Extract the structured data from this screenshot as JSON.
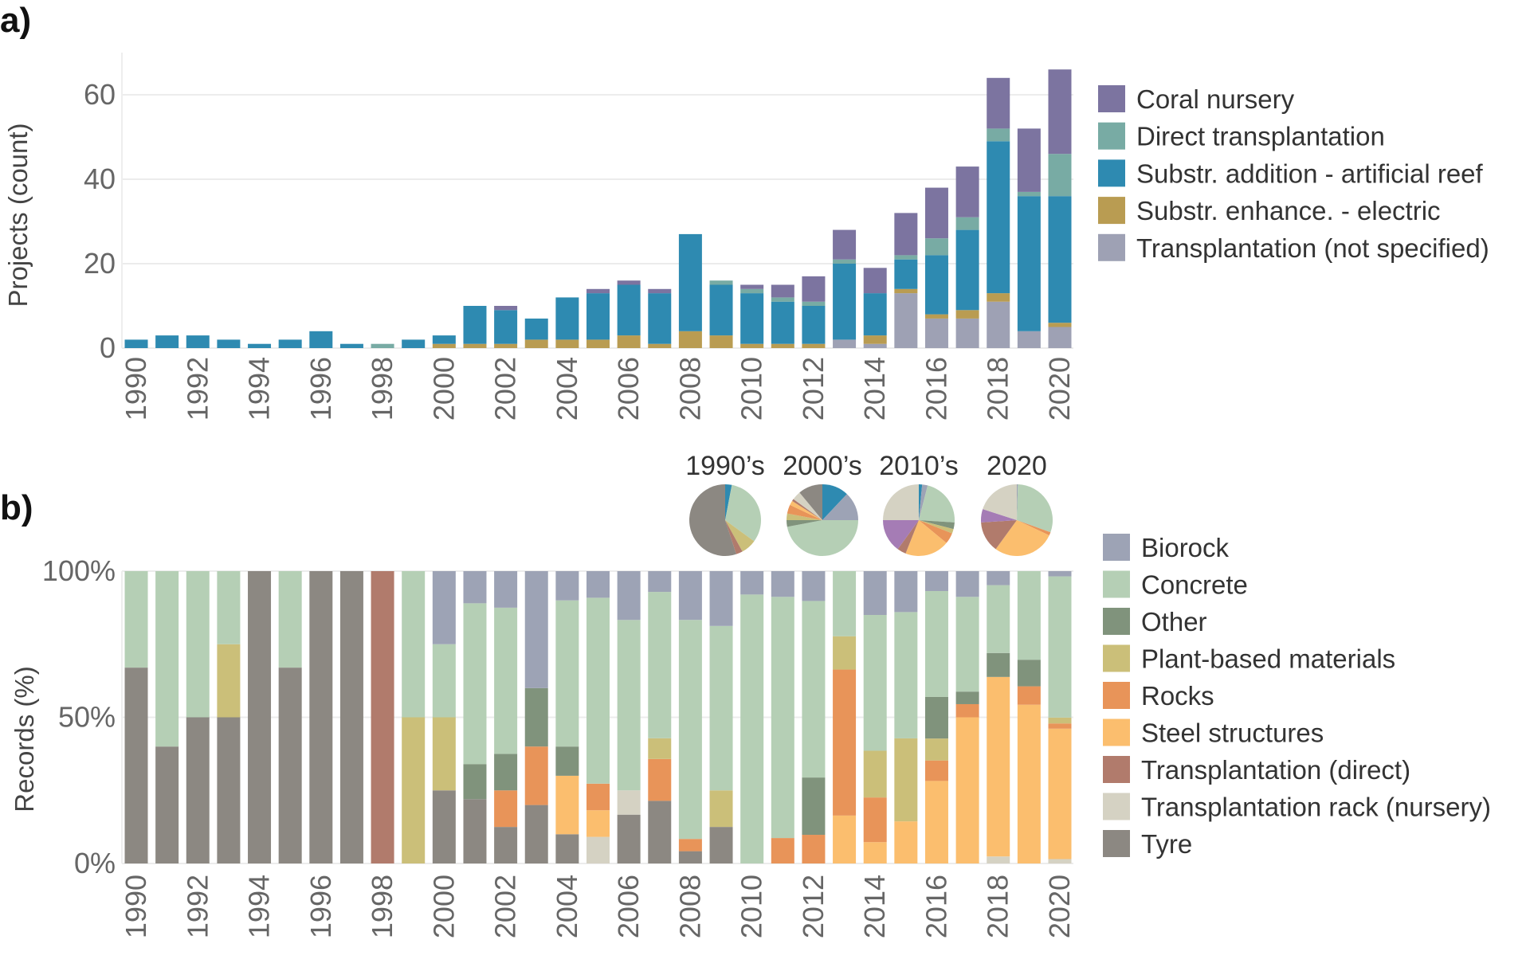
{
  "chart_data": [
    {
      "panel_label": "a)",
      "type": "bar",
      "stacked": true,
      "ylabel": "Projects (count)",
      "xlabel": "",
      "ylim": [
        0,
        70
      ],
      "y_ticks": [
        0,
        20,
        40,
        60
      ],
      "y_tick_labels": [
        "0",
        "20",
        "40",
        "60"
      ],
      "categories": [
        1990,
        1991,
        1992,
        1993,
        1994,
        1995,
        1996,
        1997,
        1998,
        1999,
        2000,
        2001,
        2002,
        2003,
        2004,
        2005,
        2006,
        2007,
        2008,
        2009,
        2010,
        2011,
        2012,
        2013,
        2014,
        2015,
        2016,
        2017,
        2018,
        2019,
        2020
      ],
      "x_tick_labels": [
        "1990",
        "1992",
        "1994",
        "1996",
        "1998",
        "2000",
        "2002",
        "2004",
        "2006",
        "2008",
        "2010",
        "2012",
        "2014",
        "2016",
        "2018",
        "2020"
      ],
      "grid": true,
      "legend_position": "right",
      "series": [
        {
          "name": "Transplantation (not specified)",
          "color": "#9ea1b4",
          "values": [
            0,
            0,
            0,
            0,
            0,
            0,
            0,
            0,
            0,
            0,
            0,
            0,
            0,
            0,
            0,
            0,
            0,
            0,
            0,
            0,
            0,
            0,
            0,
            2,
            1,
            13,
            7,
            7,
            11,
            4,
            5
          ]
        },
        {
          "name": "Substr. enhance. - electric",
          "color": "#b99c52",
          "values": [
            0,
            0,
            0,
            0,
            0,
            0,
            0,
            0,
            0,
            0,
            1,
            1,
            1,
            2,
            2,
            2,
            3,
            1,
            4,
            3,
            1,
            1,
            1,
            0,
            2,
            1,
            1,
            2,
            2,
            0,
            1
          ]
        },
        {
          "name": "Substr. addition - artificial reef",
          "color": "#2e8ab1",
          "values": [
            2,
            3,
            3,
            2,
            1,
            2,
            4,
            1,
            0,
            2,
            2,
            9,
            8,
            5,
            10,
            11,
            12,
            12,
            23,
            12,
            12,
            10,
            9,
            18,
            10,
            7,
            14,
            19,
            36,
            32,
            30
          ]
        },
        {
          "name": "Direct transplantation",
          "color": "#78aba4",
          "values": [
            0,
            0,
            0,
            0,
            0,
            0,
            0,
            0,
            1,
            0,
            0,
            0,
            0,
            0,
            0,
            0,
            0,
            0,
            0,
            1,
            1,
            1,
            1,
            1,
            0,
            1,
            4,
            3,
            3,
            1,
            10
          ]
        },
        {
          "name": "Coral nursery",
          "color": "#7c74a0",
          "values": [
            0,
            0,
            0,
            0,
            0,
            0,
            0,
            0,
            0,
            0,
            0,
            0,
            1,
            0,
            0,
            1,
            1,
            1,
            0,
            0,
            1,
            3,
            6,
            7,
            6,
            10,
            12,
            12,
            12,
            15,
            20
          ]
        }
      ],
      "legend_order": [
        "Coral nursery",
        "Direct transplantation",
        "Substr. addition - artificial reef",
        "Substr. enhance. - electric",
        "Transplantation (not specified)"
      ]
    },
    {
      "panel_label": "b)",
      "type": "bar",
      "stacked": true,
      "percent": true,
      "ylabel": "Records (%)",
      "xlabel": "",
      "ylim": [
        0,
        100
      ],
      "y_ticks": [
        0,
        50,
        100
      ],
      "y_tick_labels": [
        "0%",
        "50%",
        "100%"
      ],
      "categories": [
        1990,
        1991,
        1992,
        1993,
        1994,
        1995,
        1996,
        1997,
        1998,
        1999,
        2000,
        2001,
        2002,
        2003,
        2004,
        2005,
        2006,
        2007,
        2008,
        2009,
        2010,
        2011,
        2012,
        2013,
        2014,
        2015,
        2016,
        2017,
        2018,
        2019,
        2020
      ],
      "x_tick_labels": [
        "1990",
        "1992",
        "1994",
        "1996",
        "1998",
        "2000",
        "2002",
        "2004",
        "2006",
        "2008",
        "2010",
        "2012",
        "2014",
        "2016",
        "2018",
        "2020"
      ],
      "grid": true,
      "legend_position": "right",
      "series": [
        {
          "name": "Tyre",
          "color": "#8c8882",
          "values": [
            67,
            40,
            50,
            50,
            100,
            67,
            100,
            100,
            0,
            0,
            25,
            22,
            12.5,
            20,
            10,
            0,
            16.7,
            21.4,
            4.2,
            12.5,
            0,
            0,
            0,
            0,
            0,
            0,
            0,
            0,
            0,
            0,
            0
          ]
        },
        {
          "name": "Transplantation rack (nursery)",
          "color": "#d5d2c3",
          "values": [
            0,
            0,
            0,
            0,
            0,
            0,
            0,
            0,
            0,
            0,
            0,
            0,
            0,
            0,
            0,
            9.1,
            8.3,
            0,
            0,
            0,
            0,
            0,
            0,
            0,
            0,
            0,
            0,
            0,
            2.4,
            0,
            1.5
          ]
        },
        {
          "name": "Transplantation (direct)",
          "color": "#b17b6c",
          "values": [
            0,
            0,
            0,
            0,
            0,
            0,
            0,
            0,
            100,
            0,
            0,
            0,
            0,
            0,
            0,
            0,
            0,
            0,
            0,
            0,
            0,
            0,
            0,
            0,
            0,
            0,
            0,
            0,
            0,
            0,
            0
          ]
        },
        {
          "name": "Steel structures",
          "color": "#fbbe6e",
          "values": [
            0,
            0,
            0,
            0,
            0,
            0,
            0,
            0,
            0,
            0,
            0,
            0,
            0,
            0,
            20,
            9.1,
            0,
            0,
            0,
            0,
            0,
            0,
            0,
            16.4,
            7.3,
            14.4,
            28.2,
            50,
            61.4,
            54.3,
            44.6
          ]
        },
        {
          "name": "Rocks",
          "color": "#e89459",
          "values": [
            0,
            0,
            0,
            0,
            0,
            0,
            0,
            0,
            0,
            0,
            0,
            0,
            12.5,
            20,
            0,
            9.1,
            0,
            14.3,
            4.2,
            0,
            0,
            8.7,
            9.8,
            50,
            15.3,
            0,
            7,
            4.5,
            0,
            6.3,
            1.8
          ]
        },
        {
          "name": "Plant-based materials",
          "color": "#cbbf79",
          "values": [
            0,
            0,
            0,
            25,
            0,
            0,
            0,
            0,
            0,
            50,
            25,
            0,
            0,
            0,
            0,
            0,
            0,
            7.1,
            0,
            12.5,
            0,
            0,
            0,
            11.4,
            16,
            28.4,
            7.5,
            0,
            0,
            0,
            2
          ]
        },
        {
          "name": "Other",
          "color": "#80937c",
          "values": [
            0,
            0,
            0,
            0,
            0,
            0,
            0,
            0,
            0,
            0,
            0,
            12,
            12.5,
            20,
            10,
            0,
            0,
            0,
            0,
            0,
            0,
            0,
            19.6,
            0,
            0,
            0,
            14.2,
            4.3,
            8.2,
            9.1,
            0
          ]
        },
        {
          "name": "Concrete",
          "color": "#b5cfb5",
          "values": [
            33,
            60,
            50,
            25,
            0,
            33,
            0,
            0,
            0,
            50,
            25,
            55,
            50,
            0,
            50,
            63.6,
            58.3,
            50,
            75,
            56.25,
            92,
            82.5,
            60.4,
            22.3,
            46.5,
            43.2,
            36.2,
            32.4,
            23.2,
            30.3,
            48.3
          ]
        },
        {
          "name": "Biorock",
          "color": "#9da3b5",
          "values": [
            0,
            0,
            0,
            0,
            0,
            0,
            0,
            0,
            0,
            0,
            25,
            11,
            12.5,
            40,
            10,
            9.1,
            16.7,
            7.1,
            16.7,
            18.75,
            8,
            8.8,
            10.2,
            0,
            15,
            14,
            6.8,
            8.8,
            4.8,
            0,
            1.8
          ]
        }
      ],
      "legend_order": [
        "Biorock",
        "Concrete",
        "Other",
        "Plant-based materials",
        "Rocks",
        "Steel structures",
        "Transplantation (direct)",
        "Transplantation rack (nursery)",
        "Tyre"
      ]
    },
    {
      "type": "pie",
      "pies": [
        {
          "title": "1990’s",
          "slices": [
            {
              "key": "blue",
              "color": "#2e8ab1",
              "value": 3
            },
            {
              "key": "Concrete",
              "color": "#b5cfb5",
              "value": 32
            },
            {
              "key": "Plant-based materials",
              "color": "#cbbf79",
              "value": 7
            },
            {
              "key": "Transplantation (direct)",
              "color": "#b17b6c",
              "value": 3
            },
            {
              "key": "Tyre",
              "color": "#8c8882",
              "value": 55
            }
          ]
        },
        {
          "title": "2000’s",
          "slices": [
            {
              "key": "blue",
              "color": "#2e8ab1",
              "value": 12
            },
            {
              "key": "Biorock",
              "color": "#9da3b5",
              "value": 13
            },
            {
              "key": "Concrete",
              "color": "#b5cfb5",
              "value": 47
            },
            {
              "key": "Other",
              "color": "#80937c",
              "value": 3
            },
            {
              "key": "Plant-based materials",
              "color": "#cbbf79",
              "value": 3
            },
            {
              "key": "Rocks",
              "color": "#e89459",
              "value": 4
            },
            {
              "key": "Steel structures",
              "color": "#fbbe6e",
              "value": 2
            },
            {
              "key": "Transplantation (direct)",
              "color": "#b17b6c",
              "value": 1
            },
            {
              "key": "Transplantation rack (nursery)",
              "color": "#d5d2c3",
              "value": 4
            },
            {
              "key": "Tyre",
              "color": "#8c8882",
              "value": 11
            }
          ]
        },
        {
          "title": "2010’s",
          "slices": [
            {
              "key": "blue",
              "color": "#2e8ab1",
              "value": 1.5
            },
            {
              "key": "Biorock",
              "color": "#9da3b5",
              "value": 2.5
            },
            {
              "key": "Concrete",
              "color": "#b5cfb5",
              "value": 22
            },
            {
              "key": "Other",
              "color": "#80937c",
              "value": 3
            },
            {
              "key": "Plant-based materials",
              "color": "#cbbf79",
              "value": 2
            },
            {
              "key": "Rocks",
              "color": "#e89459",
              "value": 5
            },
            {
              "key": "Steel structures",
              "color": "#fbbe6e",
              "value": 20
            },
            {
              "key": "Transplantation (direct)",
              "color": "#b17b6c",
              "value": 4
            },
            {
              "key": "purple",
              "color": "#a57cb5",
              "value": 15
            },
            {
              "key": "Transplantation rack (nursery)",
              "color": "#d5d2c3",
              "value": 25
            }
          ]
        },
        {
          "title": "2020",
          "slices": [
            {
              "key": "Biorock",
              "color": "#9da3b5",
              "value": 0.5
            },
            {
              "key": "Concrete",
              "color": "#b5cfb5",
              "value": 30
            },
            {
              "key": "Rocks",
              "color": "#e89459",
              "value": 1.5
            },
            {
              "key": "Steel structures",
              "color": "#fbbe6e",
              "value": 28
            },
            {
              "key": "Transplantation (direct)",
              "color": "#b17b6c",
              "value": 14
            },
            {
              "key": "purple",
              "color": "#a57cb5",
              "value": 6
            },
            {
              "key": "Transplantation rack (nursery)",
              "color": "#d5d2c3",
              "value": 20
            }
          ]
        }
      ]
    }
  ]
}
